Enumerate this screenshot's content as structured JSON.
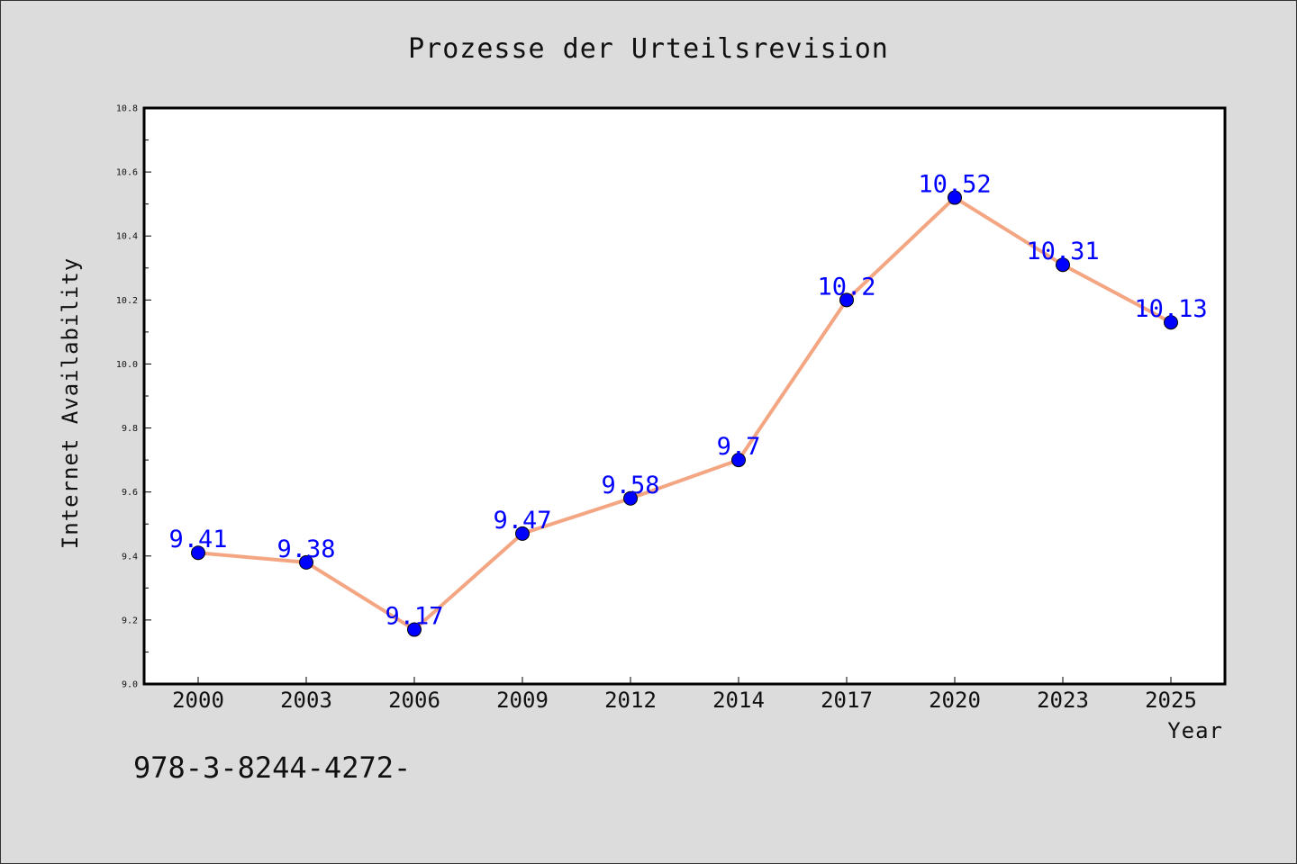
{
  "chart_data": {
    "type": "line",
    "title": "Prozesse der Urteilsrevision",
    "xlabel": "Year",
    "ylabel": "Internet Availability",
    "categories": [
      "2000",
      "2003",
      "2006",
      "2009",
      "2012",
      "2014",
      "2017",
      "2020",
      "2023",
      "2025"
    ],
    "series": [
      {
        "values": [
          9.41,
          9.38,
          9.17,
          9.47,
          9.58,
          9.7,
          10.2,
          10.52,
          10.31,
          10.13
        ],
        "data_labels": [
          "9.41",
          "9.38",
          "9.17",
          "9.47",
          "9.58",
          "9.7",
          "10.2",
          "10.52",
          "10.31",
          "10.13"
        ]
      }
    ],
    "ylim": [
      9.0,
      10.8
    ],
    "yticks": [
      "9.0",
      "9.2",
      "9.4",
      "9.6",
      "9.8",
      "10.0",
      "10.2",
      "10.4",
      "10.6",
      "10.8"
    ],
    "grid": false,
    "line_color": "#f4a582",
    "marker_color": "#0000ff",
    "label_color": "#0000ff"
  },
  "footnote": "978-3-8244-4272-"
}
